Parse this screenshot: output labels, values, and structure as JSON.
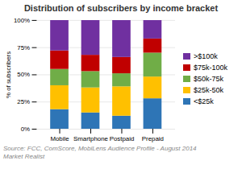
{
  "chart_data": {
    "type": "bar",
    "title": "Distribution of subscribers by income bracket",
    "categories": [
      "Mobile",
      "Smartphone",
      "Postpaid",
      "Prepaid"
    ],
    "series": [
      {
        "name": "<$25k",
        "color": "#2e75b6",
        "values": [
          18,
          15,
          12,
          28
        ]
      },
      {
        "name": "$25k-50k",
        "color": "#ffc000",
        "values": [
          22,
          23,
          27,
          20
        ]
      },
      {
        "name": "$50k-75k",
        "color": "#70ad47",
        "values": [
          15,
          15,
          12,
          22
        ]
      },
      {
        "name": "$75k-100k",
        "color": "#c00000",
        "values": [
          17,
          15,
          15,
          13
        ]
      },
      {
        "name": ">$100k",
        "color": "#7030a0",
        "values": [
          28,
          32,
          34,
          17
        ]
      }
    ],
    "stacked": true,
    "ylabel": "% of subscribers",
    "ylim": [
      0,
      100
    ],
    "yticks": [
      {
        "value": 0,
        "label": "0%"
      },
      {
        "value": 25,
        "label": "25%"
      },
      {
        "value": 50,
        "label": "50%"
      },
      {
        "value": 75,
        "label": "75%"
      },
      {
        "value": 100,
        "label": "100%"
      }
    ],
    "grid": true,
    "legend": "right",
    "annotations": [
      "Source: FCC, ComScore, MobiLens Audience Profile - August 2014",
      "Market Realist"
    ]
  }
}
